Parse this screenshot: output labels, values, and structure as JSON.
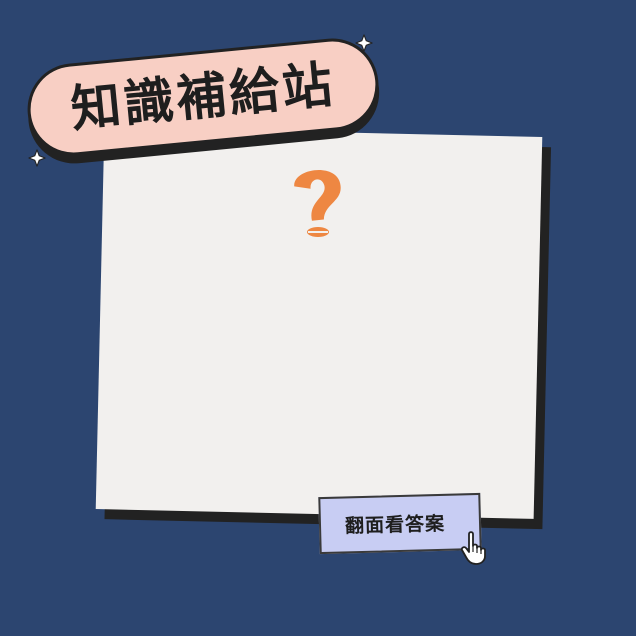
{
  "banner": {
    "title": "知識補給站"
  },
  "card": {
    "icon": "question-mark-icon"
  },
  "flip_button": {
    "label": "翻面看答案",
    "icon": "pointer-hand-icon"
  },
  "colors": {
    "background": "#2c4570",
    "card": "#f2f0ee",
    "shadow": "#222222",
    "banner": "#f8cfc4",
    "question_mark": "#ee8742",
    "button": "#c8cdf3"
  }
}
